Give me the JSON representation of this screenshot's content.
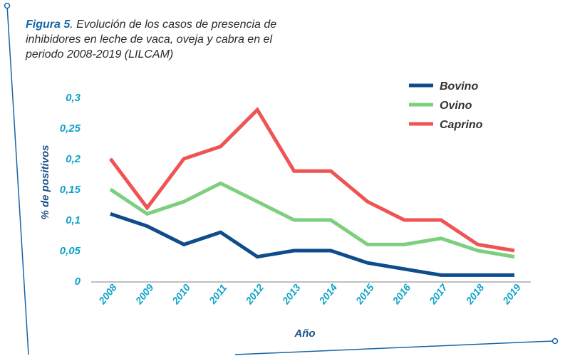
{
  "figure": {
    "label": "Figura 5",
    "caption": ". Evolución de los casos de presencia de inhibidores en leche de vaca, oveja y cabra en el periodo 2008-2019 (LILCAM)"
  },
  "colors": {
    "frame": "#1565a8",
    "tick_text": "#0ea3c8",
    "axis_label": "#1a4f87",
    "axis_line": "#7f7f7f"
  },
  "chart_data": {
    "type": "line",
    "x": [
      "2008",
      "2009",
      "2010",
      "2011",
      "2012",
      "2013",
      "2014",
      "2015",
      "2016",
      "2017",
      "2018",
      "2019"
    ],
    "series": [
      {
        "name": "Bovino",
        "color": "#0f4c8a",
        "values": [
          0.11,
          0.09,
          0.06,
          0.08,
          0.04,
          0.05,
          0.05,
          0.03,
          0.02,
          0.01,
          0.01,
          0.01
        ]
      },
      {
        "name": "Ovino",
        "color": "#7bcf7d",
        "values": [
          0.15,
          0.11,
          0.13,
          0.16,
          0.13,
          0.1,
          0.1,
          0.06,
          0.06,
          0.07,
          0.05,
          0.04
        ]
      },
      {
        "name": "Caprino",
        "color": "#ef5353",
        "values": [
          0.2,
          0.12,
          0.2,
          0.22,
          0.28,
          0.18,
          0.18,
          0.13,
          0.1,
          0.1,
          0.06,
          0.05
        ]
      }
    ],
    "yticks": [
      "0",
      "0,05",
      "0,1",
      "0,15",
      "0,2",
      "0,25",
      "0,3"
    ],
    "ylim": [
      0,
      0.3
    ],
    "xlabel": "Año",
    "ylabel": "% de positivos",
    "legend_position": "top-right",
    "grid": false
  }
}
